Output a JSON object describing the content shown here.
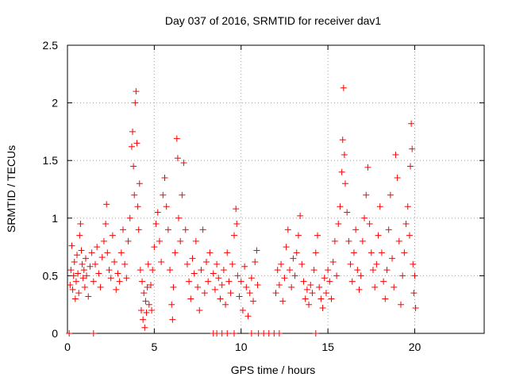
{
  "chart_data": {
    "type": "scatter",
    "title": "Day 037 of 2016, SRMTID for receiver dav1",
    "xlabel": "GPS time / hours",
    "ylabel": "SRMTID / TECUs",
    "xlim": [
      0,
      24
    ],
    "ylim": [
      0,
      2.5
    ],
    "xticks": [
      0,
      5,
      10,
      15,
      20
    ],
    "yticks": [
      0,
      0.5,
      1,
      1.5,
      2,
      2.5
    ],
    "ytick_labels": [
      "0",
      "0.5",
      "1",
      "1.5",
      "2",
      "2.5"
    ],
    "grid": true,
    "marker": "+",
    "color": "#ff0000",
    "series": [
      {
        "name": "SRMTID",
        "points": [
          [
            0.1,
            0.0
          ],
          [
            0.15,
            0.42
          ],
          [
            0.2,
            0.55
          ],
          [
            0.25,
            0.76
          ],
          [
            0.3,
            0.38
          ],
          [
            0.35,
            0.5
          ],
          [
            0.4,
            0.62
          ],
          [
            0.45,
            0.3
          ],
          [
            0.5,
            0.45
          ],
          [
            0.55,
            0.68
          ],
          [
            0.6,
            0.52
          ],
          [
            0.65,
            0.35
          ],
          [
            0.7,
            0.85
          ],
          [
            0.75,
            0.95
          ],
          [
            0.8,
            0.72
          ],
          [
            0.85,
            0.6
          ],
          [
            0.9,
            0.48
          ],
          [
            0.95,
            0.55
          ],
          [
            1.0,
            0.4
          ],
          [
            1.05,
            0.65
          ],
          [
            1.1,
            0.5
          ],
          [
            1.2,
            0.32
          ],
          [
            1.3,
            0.58
          ],
          [
            1.4,
            0.7
          ],
          [
            1.5,
            0.45
          ],
          [
            1.5,
            0.0
          ],
          [
            1.6,
            0.6
          ],
          [
            1.7,
            0.75
          ],
          [
            1.8,
            0.52
          ],
          [
            1.9,
            0.4
          ],
          [
            2.0,
            0.66
          ],
          [
            2.1,
            0.8
          ],
          [
            2.2,
            0.95
          ],
          [
            2.25,
            1.12
          ],
          [
            2.3,
            0.7
          ],
          [
            2.4,
            0.55
          ],
          [
            2.5,
            0.48
          ],
          [
            2.6,
            0.85
          ],
          [
            2.7,
            0.62
          ],
          [
            2.8,
            0.38
          ],
          [
            2.9,
            0.52
          ],
          [
            3.0,
            0.45
          ],
          [
            3.1,
            0.7
          ],
          [
            3.2,
            0.9
          ],
          [
            3.3,
            0.6
          ],
          [
            3.4,
            0.48
          ],
          [
            3.5,
            0.8
          ],
          [
            3.6,
            1.0
          ],
          [
            3.7,
            1.62
          ],
          [
            3.75,
            1.75
          ],
          [
            3.8,
            1.45
          ],
          [
            3.85,
            1.2
          ],
          [
            3.9,
            2.0
          ],
          [
            3.95,
            2.1
          ],
          [
            4.0,
            1.65
          ],
          [
            4.05,
            1.1
          ],
          [
            4.1,
            0.9
          ],
          [
            4.15,
            1.3
          ],
          [
            4.2,
            0.55
          ],
          [
            4.25,
            0.2
          ],
          [
            4.3,
            0.45
          ],
          [
            4.35,
            0.12
          ],
          [
            4.4,
            0.35
          ],
          [
            4.45,
            0.05
          ],
          [
            4.5,
            0.28
          ],
          [
            4.55,
            0.18
          ],
          [
            4.6,
            0.4
          ],
          [
            4.65,
            0.6
          ],
          [
            4.7,
            0.25
          ],
          [
            4.8,
            0.42
          ],
          [
            4.85,
            0.2
          ],
          [
            4.9,
            0.55
          ],
          [
            5.0,
            0.75
          ],
          [
            5.1,
            0.95
          ],
          [
            5.2,
            1.05
          ],
          [
            5.3,
            0.8
          ],
          [
            5.4,
            0.62
          ],
          [
            5.5,
            1.2
          ],
          [
            5.6,
            1.35
          ],
          [
            5.7,
            1.1
          ],
          [
            5.8,
            0.9
          ],
          [
            5.9,
            0.55
          ],
          [
            6.0,
            0.25
          ],
          [
            6.05,
            0.12
          ],
          [
            6.1,
            0.4
          ],
          [
            6.2,
            0.7
          ],
          [
            6.3,
            1.69
          ],
          [
            6.35,
            1.52
          ],
          [
            6.4,
            1.0
          ],
          [
            6.5,
            0.8
          ],
          [
            6.6,
            1.2
          ],
          [
            6.7,
            1.48
          ],
          [
            6.8,
            0.9
          ],
          [
            6.9,
            0.6
          ],
          [
            7.0,
            0.45
          ],
          [
            7.1,
            0.3
          ],
          [
            7.2,
            0.65
          ],
          [
            7.3,
            0.52
          ],
          [
            7.4,
            0.8
          ],
          [
            7.5,
            0.4
          ],
          [
            7.6,
            0.2
          ],
          [
            7.7,
            0.55
          ],
          [
            7.8,
            0.9
          ],
          [
            7.9,
            0.35
          ],
          [
            8.0,
            0.62
          ],
          [
            8.1,
            0.45
          ],
          [
            8.2,
            0.7
          ],
          [
            8.4,
            0.52
          ],
          [
            8.5,
            0.38
          ],
          [
            8.6,
            0.6
          ],
          [
            8.7,
            0.48
          ],
          [
            8.8,
            0.3
          ],
          [
            8.9,
            0.42
          ],
          [
            9.0,
            0.55
          ],
          [
            9.1,
            0.25
          ],
          [
            9.2,
            0.7
          ],
          [
            9.3,
            0.45
          ],
          [
            9.4,
            0.35
          ],
          [
            9.5,
            0.6
          ],
          [
            9.6,
            0.85
          ],
          [
            9.7,
            1.08
          ],
          [
            9.75,
            0.95
          ],
          [
            9.8,
            0.5
          ],
          [
            9.9,
            0.32
          ],
          [
            10.0,
            0.45
          ],
          [
            10.1,
            0.2
          ],
          [
            10.2,
            0.58
          ],
          [
            10.3,
            0.4
          ],
          [
            10.4,
            0.15
          ],
          [
            10.5,
            0.35
          ],
          [
            10.6,
            0.48
          ],
          [
            10.7,
            0.28
          ],
          [
            10.8,
            0.62
          ],
          [
            10.9,
            0.72
          ],
          [
            10.95,
            0.42
          ],
          [
            8.4,
            0.0
          ],
          [
            8.6,
            0.0
          ],
          [
            8.9,
            0.0
          ],
          [
            9.2,
            0.0
          ],
          [
            9.6,
            0.0
          ],
          [
            10.6,
            0.0
          ],
          [
            11.0,
            0.0
          ],
          [
            11.3,
            0.0
          ],
          [
            11.6,
            0.0
          ],
          [
            11.9,
            0.0
          ],
          [
            12.2,
            0.0
          ],
          [
            14.3,
            0.0
          ],
          [
            12.0,
            0.35
          ],
          [
            12.1,
            0.55
          ],
          [
            12.2,
            0.42
          ],
          [
            12.3,
            0.6
          ],
          [
            12.4,
            0.28
          ],
          [
            12.5,
            0.48
          ],
          [
            12.6,
            0.75
          ],
          [
            12.7,
            0.9
          ],
          [
            12.8,
            0.55
          ],
          [
            12.9,
            0.4
          ],
          [
            13.0,
            0.65
          ],
          [
            13.1,
            0.5
          ],
          [
            13.2,
            0.7
          ],
          [
            13.3,
            0.85
          ],
          [
            13.4,
            1.02
          ],
          [
            13.5,
            0.6
          ],
          [
            13.6,
            0.45
          ],
          [
            13.7,
            0.3
          ],
          [
            13.8,
            0.38
          ],
          [
            13.9,
            0.25
          ],
          [
            14.0,
            0.42
          ],
          [
            14.1,
            0.35
          ],
          [
            14.2,
            0.55
          ],
          [
            14.3,
            0.7
          ],
          [
            14.4,
            0.85
          ],
          [
            14.5,
            0.4
          ],
          [
            14.6,
            0.3
          ],
          [
            14.7,
            0.22
          ],
          [
            14.8,
            0.48
          ],
          [
            14.9,
            0.35
          ],
          [
            15.0,
            0.55
          ],
          [
            15.1,
            0.45
          ],
          [
            15.2,
            0.3
          ],
          [
            15.3,
            0.62
          ],
          [
            15.4,
            0.8
          ],
          [
            15.5,
            0.5
          ],
          [
            15.6,
            0.95
          ],
          [
            15.7,
            1.1
          ],
          [
            15.8,
            1.4
          ],
          [
            15.85,
            1.68
          ],
          [
            15.9,
            2.13
          ],
          [
            15.95,
            1.55
          ],
          [
            16.0,
            1.3
          ],
          [
            16.1,
            1.05
          ],
          [
            16.2,
            0.8
          ],
          [
            16.3,
            0.6
          ],
          [
            16.4,
            0.45
          ],
          [
            16.5,
            0.7
          ],
          [
            16.6,
            0.9
          ],
          [
            16.7,
            0.55
          ],
          [
            16.8,
            0.38
          ],
          [
            16.9,
            0.5
          ],
          [
            17.0,
            0.8
          ],
          [
            17.1,
            1.0
          ],
          [
            17.2,
            1.2
          ],
          [
            17.3,
            1.44
          ],
          [
            17.4,
            0.95
          ],
          [
            17.5,
            0.7
          ],
          [
            17.6,
            0.55
          ],
          [
            17.7,
            0.4
          ],
          [
            17.8,
            0.6
          ],
          [
            17.9,
            0.85
          ],
          [
            18.0,
            1.1
          ],
          [
            18.1,
            0.7
          ],
          [
            18.2,
            0.45
          ],
          [
            18.3,
            0.3
          ],
          [
            18.4,
            0.55
          ],
          [
            18.5,
            0.9
          ],
          [
            18.6,
            1.2
          ],
          [
            18.7,
            0.65
          ],
          [
            18.8,
            0.4
          ],
          [
            18.9,
            1.55
          ],
          [
            19.0,
            1.35
          ],
          [
            19.1,
            0.8
          ],
          [
            19.2,
            0.25
          ],
          [
            19.3,
            0.5
          ],
          [
            19.4,
            0.7
          ],
          [
            19.5,
            0.95
          ],
          [
            19.6,
            1.1
          ],
          [
            19.7,
            0.85
          ],
          [
            19.75,
            1.45
          ],
          [
            19.8,
            1.82
          ],
          [
            19.85,
            1.6
          ],
          [
            19.9,
            0.6
          ],
          [
            19.95,
            0.35
          ],
          [
            20.0,
            0.5
          ],
          [
            20.05,
            0.22
          ]
        ]
      }
    ]
  }
}
